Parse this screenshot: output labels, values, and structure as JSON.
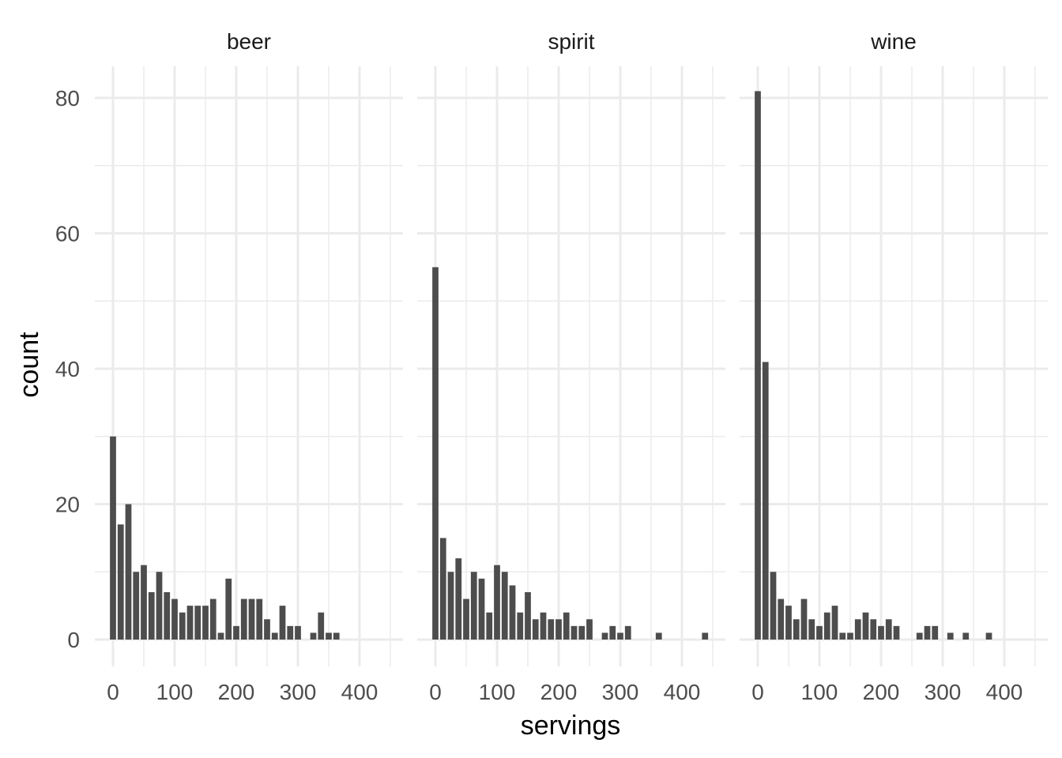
{
  "chart_data": {
    "type": "bar",
    "subtype": "faceted-histogram",
    "xlabel": "servings",
    "ylabel": "count",
    "xlim": [
      -13,
      460
    ],
    "ylim": [
      -4,
      85
    ],
    "x_ticks": [
      0,
      100,
      200,
      300,
      400
    ],
    "x_minor_ticks": [
      50,
      150,
      250,
      350,
      450
    ],
    "y_ticks": [
      0,
      20,
      40,
      60,
      80
    ],
    "y_minor_ticks": [
      10,
      30,
      50,
      70
    ],
    "bin_width": 12.5,
    "grid": true,
    "bar_color": "#4d4d4d",
    "grid_color": "#ebebeb",
    "facets": [
      {
        "name": "beer",
        "counts": [
          30,
          17,
          20,
          10,
          11,
          7,
          10,
          7,
          6,
          4,
          5,
          5,
          5,
          6,
          1,
          9,
          2,
          6,
          6,
          6,
          3,
          1,
          5,
          2,
          2,
          0,
          1,
          4,
          1,
          1,
          0,
          0,
          0,
          0,
          0,
          0
        ]
      },
      {
        "name": "spirit",
        "counts": [
          55,
          15,
          10,
          12,
          6,
          10,
          9,
          4,
          11,
          10,
          8,
          4,
          7,
          3,
          4,
          3,
          3,
          4,
          2,
          2,
          3,
          0,
          1,
          2,
          1,
          2,
          0,
          0,
          0,
          1,
          0,
          0,
          0,
          0,
          0,
          1
        ]
      },
      {
        "name": "wine",
        "counts": [
          81,
          41,
          10,
          6,
          5,
          3,
          6,
          3,
          2,
          4,
          5,
          1,
          1,
          3,
          4,
          3,
          2,
          3,
          2,
          0,
          0,
          1,
          2,
          2,
          0,
          1,
          0,
          1,
          0,
          0,
          1,
          0,
          0,
          0,
          0,
          0
        ]
      }
    ]
  }
}
